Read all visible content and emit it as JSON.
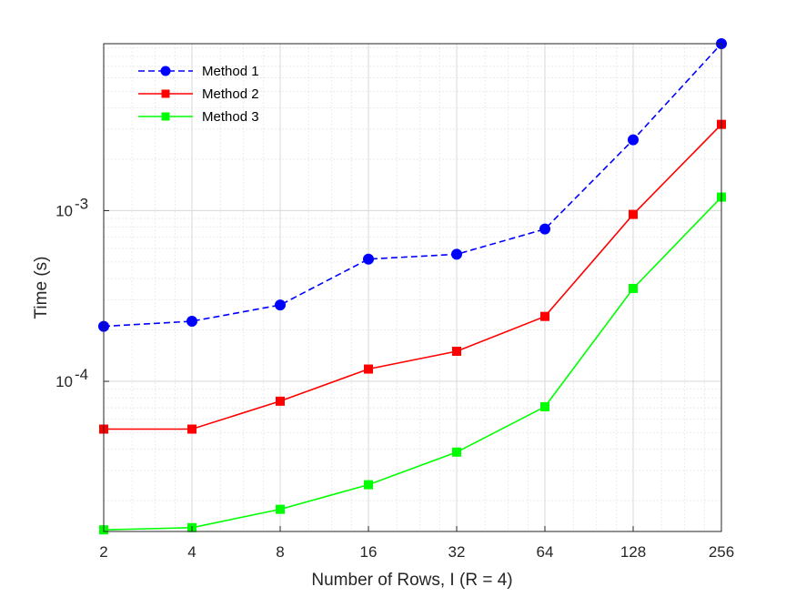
{
  "chart_data": {
    "type": "line",
    "title": "",
    "xlabel": "Number of Rows, I (R = 4)",
    "ylabel": "Time (s)",
    "x_scale": "log2",
    "y_scale": "log10",
    "x": [
      2,
      4,
      8,
      16,
      32,
      64,
      128,
      256
    ],
    "x_tick_labels": [
      "2",
      "4",
      "8",
      "16",
      "32",
      "64",
      "128",
      "256"
    ],
    "xlim": [
      2,
      256
    ],
    "ylim": [
      1.32e-05,
      0.0095
    ],
    "y_ticks": [
      {
        "value": 0.0001,
        "base": "10",
        "exp": "-4"
      },
      {
        "value": 0.001,
        "base": "10",
        "exp": "-3"
      }
    ],
    "grid": true,
    "legend_position": "top-left",
    "series": [
      {
        "name": "Method 1",
        "color": "#0000ff",
        "line_style": "dashed",
        "marker": "circle",
        "values": [
          0.00021,
          0.000225,
          0.00028,
          0.00052,
          0.000555,
          0.00078,
          0.0026,
          0.0095
        ]
      },
      {
        "name": "Method 2",
        "color": "#ff0000",
        "line_style": "solid",
        "marker": "square",
        "values": [
          5.25e-05,
          5.25e-05,
          7.65e-05,
          0.000118,
          0.00015,
          0.00024,
          0.00095,
          0.0032
        ]
      },
      {
        "name": "Method 3",
        "color": "#00ff00",
        "line_style": "solid",
        "marker": "square",
        "values": [
          1.35e-05,
          1.39e-05,
          1.78e-05,
          2.48e-05,
          3.85e-05,
          7.1e-05,
          0.00035,
          0.0012
        ]
      }
    ]
  }
}
